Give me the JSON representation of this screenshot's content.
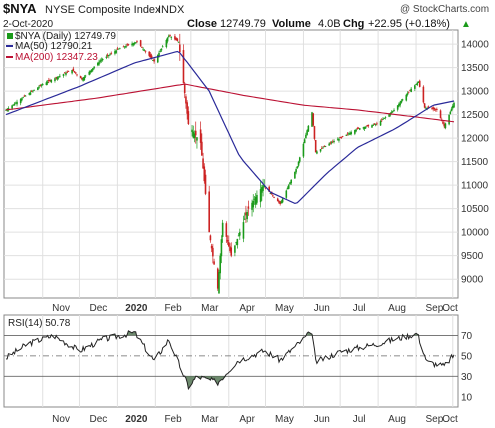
{
  "header": {
    "symbol": "$NYA",
    "name": "NYSE Composite Index",
    "exchange": "INDX",
    "brand": "@ StockCharts.com",
    "date": "2-Oct-2020",
    "close_label": "Close",
    "close_value": "12749.79",
    "volume_label": "Volume",
    "volume_value": "4.0B",
    "chg_label": "Chg",
    "chg_value": "+22.95 (+0.18%)",
    "chg_arrow": "▲"
  },
  "legend": {
    "price": "$NYA (Daily) 12749.79",
    "ma50": "MA(50) 12790.21",
    "ma200": "MA(200) 12347.23"
  },
  "rsi_label": "RSI(14) 50.78",
  "x_axis_labels": [
    "Nov",
    "Dec",
    "2020",
    "Feb",
    "Mar",
    "Apr",
    "May",
    "Jun",
    "Jul",
    "Aug",
    "Sep",
    "Oct"
  ],
  "price_ticks": [
    "14000",
    "13500",
    "13000",
    "12500",
    "12000",
    "11500",
    "11000",
    "10500",
    "10000",
    "9500",
    "9000"
  ],
  "rsi_ticks": [
    "70",
    "50",
    "30",
    "10"
  ],
  "colors": {
    "candle_up": "#1a9a1a",
    "candle_down": "#cc2222",
    "ma50": "#2a2a99",
    "ma200": "#bb1133",
    "rsi_line": "#222222",
    "rsi_fill": "#557755",
    "grid": "#e0e0e0",
    "border": "#888888"
  },
  "chart_data": [
    {
      "type": "candlestick",
      "title": "$NYA NYSE Composite Index INDX",
      "x_range": [
        "2019-10-02",
        "2020-10-02"
      ],
      "ylim": [
        8600,
        14300
      ],
      "grid": true,
      "legend_position": "top-left",
      "price_anchors": [
        {
          "date": "2019-10-02",
          "close": 12600
        },
        {
          "date": "2019-10-15",
          "close": 12850
        },
        {
          "date": "2019-11-01",
          "close": 13150
        },
        {
          "date": "2019-11-25",
          "close": 13450
        },
        {
          "date": "2019-12-03",
          "close": 13250
        },
        {
          "date": "2019-12-18",
          "close": 13650
        },
        {
          "date": "2020-01-02",
          "close": 13900
        },
        {
          "date": "2020-01-17",
          "close": 14050
        },
        {
          "date": "2020-01-31",
          "close": 13630
        },
        {
          "date": "2020-02-12",
          "close": 14180
        },
        {
          "date": "2020-02-20",
          "close": 14050
        },
        {
          "date": "2020-02-28",
          "close": 12300
        },
        {
          "date": "2020-03-09",
          "close": 11900
        },
        {
          "date": "2020-03-16",
          "close": 10000
        },
        {
          "date": "2020-03-23",
          "close": 8800
        },
        {
          "date": "2020-03-27",
          "close": 10200
        },
        {
          "date": "2020-04-03",
          "close": 9500
        },
        {
          "date": "2020-04-17",
          "close": 10500
        },
        {
          "date": "2020-04-29",
          "close": 11000
        },
        {
          "date": "2020-05-13",
          "close": 10600
        },
        {
          "date": "2020-05-27",
          "close": 11400
        },
        {
          "date": "2020-06-08",
          "close": 12550
        },
        {
          "date": "2020-06-11",
          "close": 11700
        },
        {
          "date": "2020-06-23",
          "close": 11900
        },
        {
          "date": "2020-07-01",
          "close": 12000
        },
        {
          "date": "2020-07-15",
          "close": 12200
        },
        {
          "date": "2020-07-31",
          "close": 12300
        },
        {
          "date": "2020-08-14",
          "close": 12600
        },
        {
          "date": "2020-08-28",
          "close": 13050
        },
        {
          "date": "2020-09-03",
          "close": 13200
        },
        {
          "date": "2020-09-08",
          "close": 12650
        },
        {
          "date": "2020-09-18",
          "close": 12600
        },
        {
          "date": "2020-09-24",
          "close": 12250
        },
        {
          "date": "2020-10-02",
          "close": 12750
        }
      ],
      "series": [
        {
          "name": "MA(50)",
          "values_at": [
            {
              "date": "2019-10-02",
              "value": 12500
            },
            {
              "date": "2019-12-01",
              "value": 13100
            },
            {
              "date": "2020-01-15",
              "value": 13600
            },
            {
              "date": "2020-02-20",
              "value": 13850
            },
            {
              "date": "2020-03-16",
              "value": 13000
            },
            {
              "date": "2020-04-10",
              "value": 11600
            },
            {
              "date": "2020-05-05",
              "value": 10850
            },
            {
              "date": "2020-05-26",
              "value": 10600
            },
            {
              "date": "2020-06-20",
              "value": 11250
            },
            {
              "date": "2020-07-15",
              "value": 11800
            },
            {
              "date": "2020-08-15",
              "value": 12200
            },
            {
              "date": "2020-09-15",
              "value": 12700
            },
            {
              "date": "2020-10-02",
              "value": 12790
            }
          ]
        },
        {
          "name": "MA(200)",
          "values_at": [
            {
              "date": "2019-10-02",
              "value": 12600
            },
            {
              "date": "2019-12-15",
              "value": 12850
            },
            {
              "date": "2020-02-25",
              "value": 13150
            },
            {
              "date": "2020-04-15",
              "value": 12900
            },
            {
              "date": "2020-06-01",
              "value": 12700
            },
            {
              "date": "2020-07-15",
              "value": 12600
            },
            {
              "date": "2020-09-01",
              "value": 12450
            },
            {
              "date": "2020-10-02",
              "value": 12347
            }
          ]
        }
      ]
    },
    {
      "type": "line",
      "title": "RSI(14) 50.78",
      "ylim": [
        0,
        90
      ],
      "reference_lines": [
        70,
        50,
        30
      ],
      "values_at": [
        {
          "date": "2019-10-02",
          "value": 48
        },
        {
          "date": "2019-10-20",
          "value": 62
        },
        {
          "date": "2019-11-10",
          "value": 70
        },
        {
          "date": "2019-12-01",
          "value": 55
        },
        {
          "date": "2019-12-20",
          "value": 66
        },
        {
          "date": "2020-01-15",
          "value": 73
        },
        {
          "date": "2020-01-31",
          "value": 45
        },
        {
          "date": "2020-02-12",
          "value": 66
        },
        {
          "date": "2020-02-28",
          "value": 20
        },
        {
          "date": "2020-03-06",
          "value": 30
        },
        {
          "date": "2020-03-23",
          "value": 24
        },
        {
          "date": "2020-04-08",
          "value": 45
        },
        {
          "date": "2020-04-30",
          "value": 55
        },
        {
          "date": "2020-05-13",
          "value": 46
        },
        {
          "date": "2020-06-08",
          "value": 74
        },
        {
          "date": "2020-06-11",
          "value": 44
        },
        {
          "date": "2020-07-01",
          "value": 54
        },
        {
          "date": "2020-08-01",
          "value": 62
        },
        {
          "date": "2020-09-02",
          "value": 72
        },
        {
          "date": "2020-09-10",
          "value": 44
        },
        {
          "date": "2020-09-24",
          "value": 40
        },
        {
          "date": "2020-10-02",
          "value": 51
        }
      ]
    }
  ]
}
